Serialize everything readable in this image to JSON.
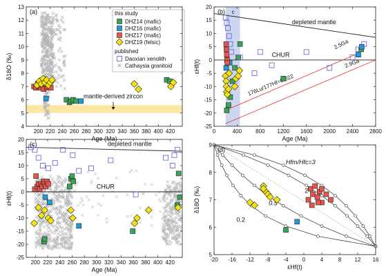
{
  "chart_data": [
    {
      "panel_label": "(a)",
      "type": "scatter",
      "xlabel": "Age (Ma)",
      "ylabel": "δ18O (‰)",
      "xlim": [
        180,
        440
      ],
      "ylim": [
        4,
        13
      ],
      "xticks": [
        "200",
        "220",
        "240",
        "260",
        "280",
        "300",
        "320",
        "340",
        "360",
        "380",
        "400",
        "420"
      ],
      "yticks": [
        "4",
        "5",
        "6",
        "7",
        "8",
        "9",
        "10",
        "11",
        "12",
        "13"
      ],
      "band": {
        "label": "mantle-derived zircon",
        "y": [
          5.0,
          5.6
        ],
        "color": "#fde7a6"
      },
      "legend_title": "this study",
      "legend_published": "published",
      "series": [
        {
          "name": "DHZ14 (mafic)",
          "color": "#3aa655",
          "marker": "square",
          "points": [
            [
              247,
              6.0
            ],
            [
              252,
              5.8
            ],
            [
              255,
              5.9
            ],
            [
              258,
              6.0
            ],
            [
              263,
              5.9
            ],
            [
              414,
              7.5
            ],
            [
              419,
              7.4
            ]
          ]
        },
        {
          "name": "DHZ16 (mafic)",
          "color": "#1f9bd6",
          "marker": "square",
          "points": [
            [
              213,
              6.1
            ],
            [
              271,
              5.9
            ]
          ]
        },
        {
          "name": "DHZ17 (mafic)",
          "color": "#e8554a",
          "marker": "square",
          "points": [
            [
              193,
              7.0
            ],
            [
              196,
              6.9
            ],
            [
              199,
              7.2
            ],
            [
              201,
              7.0
            ],
            [
              204,
              6.9
            ],
            [
              206,
              7.1
            ],
            [
              209,
              6.8
            ],
            [
              211,
              7.3
            ],
            [
              214,
              6.9
            ],
            [
              216,
              7.0
            ],
            [
              218,
              7.2
            ],
            [
              221,
              6.9
            ]
          ]
        },
        {
          "name": "DHZ19 (felsic)",
          "color": "#f5e212",
          "marker": "diamond",
          "points": [
            [
              198,
              7.1
            ],
            [
              202,
              7.4
            ],
            [
              205,
              7.2
            ],
            [
              208,
              7.6
            ],
            [
              211,
              7.3
            ],
            [
              214,
              7.5
            ],
            [
              217,
              7.1
            ],
            [
              220,
              7.3
            ],
            [
              223,
              7.5
            ],
            [
              360,
              7.2
            ],
            [
              367,
              6.8
            ],
            [
              421,
              7.0
            ],
            [
              425,
              7.3
            ]
          ]
        },
        {
          "name": "Daoxian xenolith",
          "color": "#6b6bd6",
          "marker": "open-square",
          "points": []
        },
        {
          "name": "Cathaysia granitoid",
          "color": "#aaaaaa",
          "marker": "x",
          "points": "dense cluster at 205–245 Ma, δ18O 7–12.5"
        }
      ]
    },
    {
      "panel_label": "(b)",
      "type": "scatter",
      "xlabel": "Age (Ma)",
      "ylabel": "εHf(t)",
      "xlim": [
        0,
        2800
      ],
      "ylim": [
        -25,
        20
      ],
      "xticks": [
        "0",
        "400",
        "800",
        "1200",
        "1600",
        "2000",
        "2400",
        "2800"
      ],
      "yticks": [
        "-25",
        "-20",
        "-15",
        "-10",
        "-5",
        "0",
        "5",
        "10",
        "15",
        "20"
      ],
      "shade_label": "c",
      "lines": {
        "depleted_mantle": "depleted mantle",
        "chur": "CHUR",
        "ratio_label": "176Lu/177Hf=0.022",
        "model_ages": [
          "2.5Ga",
          "2.9Ga"
        ]
      },
      "series": [
        {
          "name": "DHZ14 (mafic)",
          "color": "#3aa655",
          "marker": "square",
          "points": [
            [
              220,
              -19
            ],
            [
              250,
              -17
            ],
            [
              280,
              -14
            ],
            [
              320,
              -8
            ],
            [
              360,
              -3
            ],
            [
              420,
              1
            ],
            [
              450,
              6
            ],
            [
              1200,
              -7
            ],
            [
              2550,
              4
            ]
          ]
        },
        {
          "name": "DHZ16 (mafic)",
          "color": "#1f9bd6",
          "marker": "square",
          "points": [
            [
              210,
              -3
            ],
            [
              270,
              -1
            ],
            [
              2500,
              2
            ],
            [
              2560,
              5
            ]
          ]
        },
        {
          "name": "DHZ17 (mafic)",
          "color": "#e8554a",
          "marker": "square",
          "points": [
            [
              210,
              6
            ],
            [
              215,
              4
            ],
            [
              220,
              2
            ],
            [
              225,
              0
            ],
            [
              230,
              -1
            ]
          ]
        },
        {
          "name": "DHZ19 (felsic)",
          "color": "#f5e212",
          "marker": "diamond",
          "points": [
            [
              200,
              -6
            ],
            [
              210,
              -8
            ],
            [
              215,
              -10
            ],
            [
              220,
              -12
            ],
            [
              230,
              -13
            ],
            [
              250,
              -11
            ],
            [
              260,
              -5
            ],
            [
              360,
              -10
            ],
            [
              380,
              -7
            ],
            [
              420,
              -6
            ],
            [
              440,
              -4
            ]
          ]
        },
        {
          "name": "Daoxian xenolith",
          "color": "#6b6bd6",
          "marker": "open-square",
          "points": [
            [
              200,
              16
            ],
            [
              220,
              14
            ],
            [
              240,
              12
            ],
            [
              260,
              9
            ],
            [
              280,
              6
            ],
            [
              300,
              3
            ],
            [
              450,
              1
            ],
            [
              700,
              -5
            ],
            [
              800,
              3
            ],
            [
              1000,
              -2
            ],
            [
              1600,
              3
            ],
            [
              2000,
              -3
            ],
            [
              2400,
              1
            ],
            [
              2500,
              4
            ],
            [
              2600,
              6
            ]
          ]
        }
      ]
    },
    {
      "panel_label": "(c)",
      "type": "scatter",
      "xlabel": "Age (Ma)",
      "ylabel": "εHf(t)",
      "xlim": [
        185,
        440
      ],
      "ylim": [
        -25,
        20
      ],
      "xticks": [
        "200",
        "220",
        "240",
        "260",
        "280",
        "300",
        "320",
        "340",
        "360",
        "380",
        "400",
        "420"
      ],
      "yticks": [
        "-25",
        "-20",
        "-15",
        "-10",
        "-5",
        "0",
        "5",
        "10",
        "15",
        "20"
      ],
      "lines": {
        "depleted_mantle": "depleted mantle",
        "chur": "CHUR"
      },
      "series": [
        {
          "name": "DHZ14 (mafic)",
          "color": "#3aa655",
          "marker": "square",
          "points": [
            [
              214,
              -19
            ],
            [
              215,
              -18
            ],
            [
              256,
              2
            ],
            [
              258,
              5
            ],
            [
              260,
              6
            ],
            [
              262,
              4
            ],
            [
              359,
              -15
            ],
            [
              432,
              -5
            ],
            [
              434,
              7
            ],
            [
              436,
              -2
            ]
          ]
        },
        {
          "name": "DHZ16 (mafic)",
          "color": "#1f9bd6",
          "marker": "square",
          "points": [
            [
              216,
              -2
            ],
            [
              223,
              -4
            ],
            [
              271,
              -13
            ]
          ]
        },
        {
          "name": "DHZ17 (mafic)",
          "color": "#e8554a",
          "marker": "square",
          "points": [
            [
              199,
              1
            ],
            [
              201,
              6
            ],
            [
              203,
              2
            ],
            [
              205,
              3
            ],
            [
              207,
              1
            ],
            [
              209,
              3
            ],
            [
              211,
              2
            ],
            [
              213,
              4
            ],
            [
              215,
              3
            ],
            [
              217,
              2
            ],
            [
              219,
              4
            ],
            [
              221,
              3
            ]
          ]
        },
        {
          "name": "DHZ19 (felsic)",
          "color": "#f5e212",
          "marker": "diamond",
          "points": [
            [
              198,
              -12
            ],
            [
              205,
              -6
            ],
            [
              210,
              -9
            ],
            [
              215,
              -7
            ],
            [
              221,
              -10
            ],
            [
              225,
              -11
            ],
            [
              258,
              -7
            ],
            [
              261,
              -10
            ],
            [
              362,
              -12
            ],
            [
              366,
              -10
            ],
            [
              385,
              -7
            ],
            [
              433,
              -6
            ]
          ]
        },
        {
          "name": "Daoxian xenolith",
          "color": "#6b6bd6",
          "marker": "open-square",
          "points": [
            [
              193,
              17
            ],
            [
              199,
              16
            ],
            [
              205,
              13
            ],
            [
              212,
              10
            ],
            [
              221,
              9
            ],
            [
              232,
              11
            ],
            [
              245,
              16
            ],
            [
              261,
              14
            ],
            [
              271,
              8
            ],
            [
              291,
              9
            ],
            [
              323,
              12
            ],
            [
              364,
              -1
            ],
            [
              413,
              13
            ],
            [
              424,
              10
            ],
            [
              427,
              14
            ],
            [
              432,
              16
            ]
          ]
        },
        {
          "name": "Cathaysia granitoid",
          "color": "#aaaaaa",
          "marker": "x",
          "points": "dense clusters near 200–260 Ma and 410–440 Ma, εHf -25 to 8"
        }
      ]
    },
    {
      "panel_label": "(d)",
      "type": "line",
      "xlabel": "εHf(t)",
      "ylabel": "δ18O (‰)",
      "xlim": [
        -20,
        16
      ],
      "ylim": [
        5,
        9
      ],
      "xticks": [
        "-20",
        "-16",
        "-12",
        "-8",
        "-4",
        "0",
        "4",
        "8",
        "12",
        "16"
      ],
      "yticks": [
        "5",
        "6",
        "7",
        "8",
        "9"
      ],
      "curve_labels": [
        "Hfm/Hfc=3",
        "2",
        "0.5",
        "0.2"
      ],
      "series": [
        {
          "name": "DHZ14 (mafic)",
          "color": "#3aa655",
          "marker": "square",
          "points": [
            [
              -4,
              5.9
            ]
          ]
        },
        {
          "name": "DHZ16 (mafic)",
          "color": "#1f9bd6",
          "marker": "square",
          "points": [
            [
              -1.5,
              6.2
            ]
          ]
        },
        {
          "name": "DHZ17 (mafic)",
          "color": "#e8554a",
          "marker": "square",
          "points": [
            [
              1,
              7.0
            ],
            [
              1.5,
              7.4
            ],
            [
              2,
              7.2
            ],
            [
              2.5,
              7.5
            ],
            [
              3,
              7.1
            ],
            [
              3.5,
              7.3
            ],
            [
              4,
              7.4
            ],
            [
              4,
              6.9
            ],
            [
              5,
              7.2
            ],
            [
              6,
              7.0
            ],
            [
              1.8,
              6.8
            ],
            [
              3.2,
              6.9
            ]
          ]
        },
        {
          "name": "DHZ19 (felsic)",
          "color": "#f5e212",
          "marker": "diamond",
          "points": [
            [
              -9,
              7.5
            ],
            [
              -8.5,
              7.3
            ],
            [
              -8,
              7.2
            ],
            [
              -7.5,
              7.1
            ],
            [
              -6,
              7.0
            ],
            [
              -12,
              6.9
            ],
            [
              -11,
              6.8
            ],
            [
              -9,
              7.4
            ]
          ]
        }
      ]
    }
  ]
}
